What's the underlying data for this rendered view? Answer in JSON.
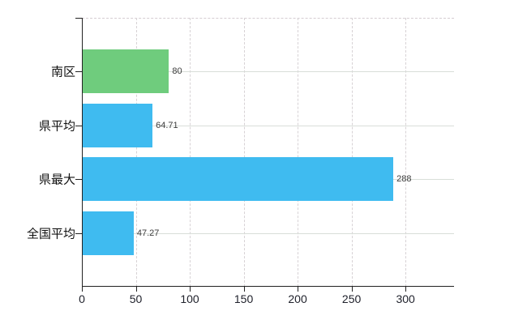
{
  "chart_data": {
    "type": "bar",
    "orientation": "horizontal",
    "title": "",
    "xlabel": "",
    "ylabel": "",
    "categories": [
      "南区",
      "県平均",
      "県最大",
      "全国平均"
    ],
    "values": [
      80,
      64.71,
      288,
      47.27
    ],
    "value_labels": [
      "80",
      "64.71",
      "288",
      "47.27"
    ],
    "series": [
      {
        "name": "",
        "values": [
          80,
          64.71,
          288,
          47.27
        ]
      }
    ],
    "bar_colors": [
      "#6fcc7d",
      "#3fbbf0",
      "#3fbbf0",
      "#3fbbf0"
    ],
    "x_ticks": [
      0,
      50,
      100,
      150,
      200,
      250,
      300
    ],
    "x_tick_labels": [
      "0",
      "50",
      "100",
      "150",
      "200",
      "250",
      "300"
    ],
    "xlim": [
      0,
      345
    ],
    "grid": true,
    "legend": false,
    "colors": {
      "background": "#ffffff",
      "axis": "#222222",
      "grid_vertical": "#d7d2d5",
      "grid_horizontal": "#d9ded9",
      "tick_label": "#20222c",
      "category_label": "#111111",
      "value_label": "#3c3c3c",
      "bar_green": "#6fcc7d",
      "bar_blue": "#3fbbf0"
    }
  }
}
